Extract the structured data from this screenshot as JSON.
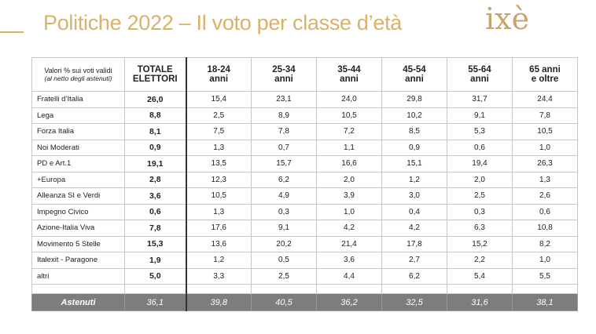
{
  "header": {
    "title": "Politiche 2022 – Il voto per classe d’età",
    "logo_text": "ixè",
    "accent_color": "#d9b26a",
    "logo_color": "#c9a46a"
  },
  "table": {
    "note_line1": "Valori % sui voti validi",
    "note_line2": "(al netto degli astenuti)",
    "total_header_line1": "TOTALE",
    "total_header_line2": "ELETTORI",
    "age_headers": [
      {
        "line1": "18-24",
        "line2": "anni"
      },
      {
        "line1": "25-34",
        "line2": "anni"
      },
      {
        "line1": "35-44",
        "line2": "anni"
      },
      {
        "line1": "45-54",
        "line2": "anni"
      },
      {
        "line1": "55-64",
        "line2": "anni"
      },
      {
        "line1": "65 anni",
        "line2": "e oltre"
      }
    ]
  },
  "chart_data": {
    "type": "table",
    "title": "Politiche 2022 – Il voto per classe d’età",
    "columns": [
      "TOTALE ELETTORI",
      "18-24 anni",
      "25-34 anni",
      "35-44 anni",
      "45-54 anni",
      "55-64 anni",
      "65 anni e oltre"
    ],
    "rows": [
      {
        "party": "Fratelli d’Italia",
        "values": [
          "26,0",
          "15,4",
          "23,1",
          "24,0",
          "29,8",
          "31,7",
          "24,4"
        ]
      },
      {
        "party": "Lega",
        "values": [
          "8,8",
          "2,5",
          "8,9",
          "10,5",
          "10,2",
          "9,1",
          "7,8"
        ]
      },
      {
        "party": "Forza Italia",
        "values": [
          "8,1",
          "7,5",
          "7,8",
          "7,2",
          "8,5",
          "5,3",
          "10,5"
        ]
      },
      {
        "party": "Noi Moderati",
        "values": [
          "0,9",
          "1,3",
          "0,7",
          "1,1",
          "0,9",
          "0,6",
          "1,0"
        ]
      },
      {
        "party": "PD e Art.1",
        "values": [
          "19,1",
          "13,5",
          "15,7",
          "16,6",
          "15,1",
          "19,4",
          "26,3"
        ]
      },
      {
        "party": "+Europa",
        "values": [
          "2,8",
          "12,3",
          "6,2",
          "2,0",
          "1,2",
          "2,0",
          "1,3"
        ]
      },
      {
        "party": "Alleanza SI e Verdi",
        "values": [
          "3,6",
          "10,5",
          "4,9",
          "3,9",
          "3,0",
          "2,5",
          "2,6"
        ]
      },
      {
        "party": "Impegno Civico",
        "values": [
          "0,6",
          "1,3",
          "0,3",
          "1,0",
          "0,4",
          "0,3",
          "0,6"
        ]
      },
      {
        "party": "Azione-Italia Viva",
        "values": [
          "7,8",
          "17,6",
          "9,1",
          "4,2",
          "4,2",
          "6,3",
          "10,8"
        ]
      },
      {
        "party": "Movimento 5 Stelle",
        "values": [
          "15,3",
          "13,6",
          "20,2",
          "21,4",
          "17,8",
          "15,2",
          "8,2"
        ]
      },
      {
        "party": "Italexit - Paragone",
        "values": [
          "1,9",
          "1,2",
          "0,5",
          "3,6",
          "2,7",
          "2,2",
          "1,0"
        ]
      },
      {
        "party": "altri",
        "values": [
          "5,0",
          "3,3",
          "2,5",
          "4,4",
          "6,2",
          "5,4",
          "5,5"
        ]
      }
    ],
    "footer": {
      "party": "Astenuti",
      "values": [
        "36,1",
        "39,8",
        "40,5",
        "36,2",
        "32,5",
        "31,6",
        "38,1"
      ]
    }
  }
}
